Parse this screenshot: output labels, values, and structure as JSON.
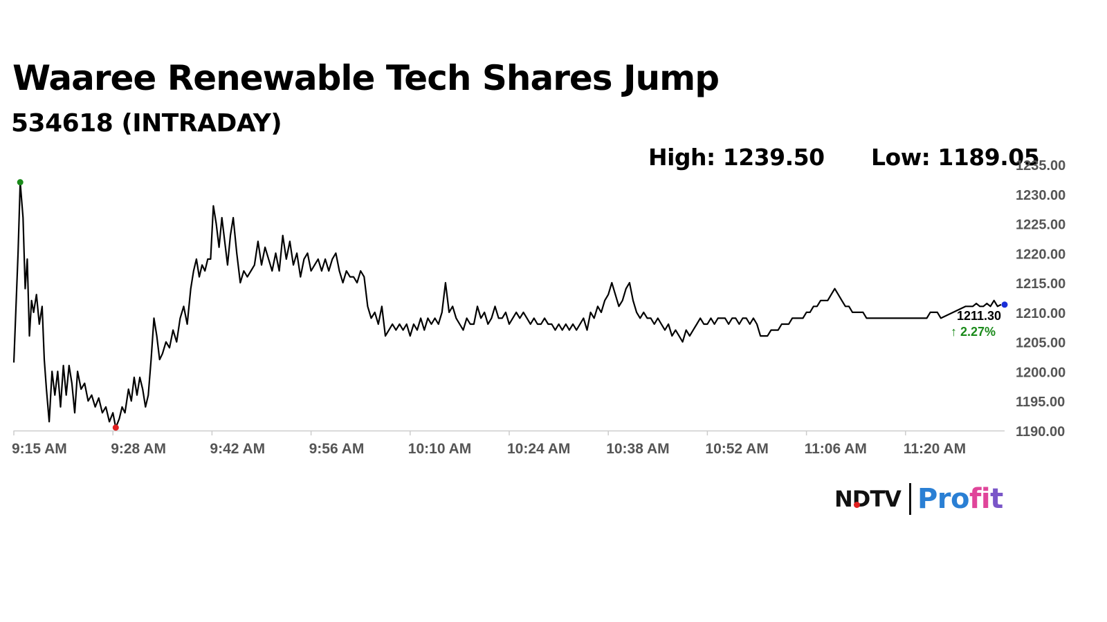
{
  "headline": "Waaree Renewable Tech Shares Jump",
  "subheadline": "534618 (INTRADAY)",
  "stats": {
    "high": "High: 1239.50",
    "low": "Low: 1189.05"
  },
  "logo": {
    "ndtv": "NDTV",
    "profit_a": "Pro",
    "profit_b": "fi",
    "profit_c": "t",
    "brand_blue": "#2a7fd4",
    "brand_pink": "#e0459a"
  },
  "chart_data": {
    "type": "line",
    "title": "Waaree Renewable Tech Shares Jump",
    "subtitle": "534618 (INTRADAY)",
    "xlabel": "",
    "ylabel": "",
    "ylim": [
      1190,
      1235
    ],
    "y_ticks": [
      "1190.00",
      "1195.00",
      "1200.00",
      "1205.00",
      "1210.00",
      "1215.00",
      "1220.00",
      "1225.00",
      "1230.00",
      "1235.00"
    ],
    "x_range_minutes": [
      0,
      140
    ],
    "x_ticks": [
      {
        "label": "9:15 AM",
        "min": 0
      },
      {
        "label": "9:28 AM",
        "min": 14
      },
      {
        "label": "9:42 AM",
        "min": 28
      },
      {
        "label": "9:56 AM",
        "min": 42
      },
      {
        "label": "10:10 AM",
        "min": 56
      },
      {
        "label": "10:24 AM",
        "min": 70
      },
      {
        "label": "10:38 AM",
        "min": 84
      },
      {
        "label": "10:52 AM",
        "min": 98
      },
      {
        "label": "11:06 AM",
        "min": 112
      },
      {
        "label": "11:20 AM",
        "min": 126
      }
    ],
    "series": [
      {
        "name": "534618",
        "color": "#000000",
        "points": [
          [
            0,
            1201.5
          ],
          [
            0.6,
            1220
          ],
          [
            0.9,
            1232
          ],
          [
            1.3,
            1226
          ],
          [
            1.6,
            1214
          ],
          [
            1.9,
            1219
          ],
          [
            2.2,
            1206
          ],
          [
            2.5,
            1212
          ],
          [
            2.8,
            1210
          ],
          [
            3.2,
            1213
          ],
          [
            3.6,
            1208
          ],
          [
            4.0,
            1211
          ],
          [
            4.3,
            1202
          ],
          [
            4.6,
            1197
          ],
          [
            5.0,
            1191.5
          ],
          [
            5.4,
            1200
          ],
          [
            5.8,
            1196
          ],
          [
            6.2,
            1200
          ],
          [
            6.6,
            1194
          ],
          [
            7.0,
            1201
          ],
          [
            7.4,
            1196
          ],
          [
            7.8,
            1201
          ],
          [
            8.2,
            1198
          ],
          [
            8.6,
            1193
          ],
          [
            9.0,
            1200
          ],
          [
            9.5,
            1197
          ],
          [
            10.0,
            1198
          ],
          [
            10.5,
            1195
          ],
          [
            11.0,
            1196
          ],
          [
            11.5,
            1194
          ],
          [
            12.0,
            1195.5
          ],
          [
            12.5,
            1193
          ],
          [
            13.0,
            1194
          ],
          [
            13.5,
            1191.5
          ],
          [
            14.0,
            1193
          ],
          [
            14.4,
            1190.5
          ],
          [
            14.9,
            1192
          ],
          [
            15.3,
            1194
          ],
          [
            15.7,
            1193
          ],
          [
            16.2,
            1197
          ],
          [
            16.6,
            1195
          ],
          [
            17.0,
            1199
          ],
          [
            17.4,
            1196
          ],
          [
            17.8,
            1199
          ],
          [
            18.2,
            1197
          ],
          [
            18.6,
            1194
          ],
          [
            19.0,
            1196
          ],
          [
            19.4,
            1202
          ],
          [
            19.8,
            1209
          ],
          [
            20.2,
            1206
          ],
          [
            20.6,
            1202
          ],
          [
            21.0,
            1203
          ],
          [
            21.5,
            1205
          ],
          [
            22.0,
            1204
          ],
          [
            22.5,
            1207
          ],
          [
            23.0,
            1205
          ],
          [
            23.5,
            1209
          ],
          [
            24.0,
            1211
          ],
          [
            24.5,
            1208
          ],
          [
            25.0,
            1214
          ],
          [
            25.4,
            1217
          ],
          [
            25.8,
            1219
          ],
          [
            26.2,
            1216
          ],
          [
            26.6,
            1218
          ],
          [
            27.0,
            1217
          ],
          [
            27.4,
            1219
          ],
          [
            27.8,
            1219
          ],
          [
            28.2,
            1228
          ],
          [
            28.6,
            1225
          ],
          [
            29.0,
            1221
          ],
          [
            29.4,
            1226
          ],
          [
            29.8,
            1222
          ],
          [
            30.2,
            1218
          ],
          [
            30.6,
            1223
          ],
          [
            31.0,
            1226
          ],
          [
            31.5,
            1220
          ],
          [
            32.0,
            1215
          ],
          [
            32.5,
            1217
          ],
          [
            33.0,
            1216
          ],
          [
            33.5,
            1217
          ],
          [
            34.0,
            1218
          ],
          [
            34.5,
            1222
          ],
          [
            35.0,
            1218
          ],
          [
            35.5,
            1221
          ],
          [
            36.0,
            1219
          ],
          [
            36.5,
            1217
          ],
          [
            37.0,
            1220
          ],
          [
            37.5,
            1217
          ],
          [
            38.0,
            1223
          ],
          [
            38.5,
            1219
          ],
          [
            39.0,
            1222
          ],
          [
            39.5,
            1218
          ],
          [
            40.0,
            1220
          ],
          [
            40.5,
            1216
          ],
          [
            41.0,
            1219
          ],
          [
            41.5,
            1220
          ],
          [
            42.0,
            1217
          ],
          [
            42.5,
            1218
          ],
          [
            43.0,
            1219
          ],
          [
            43.5,
            1217
          ],
          [
            44.0,
            1219
          ],
          [
            44.5,
            1217
          ],
          [
            45.0,
            1219
          ],
          [
            45.5,
            1220
          ],
          [
            46.0,
            1217
          ],
          [
            46.5,
            1215
          ],
          [
            47.0,
            1217
          ],
          [
            47.5,
            1216
          ],
          [
            48.0,
            1216
          ],
          [
            48.5,
            1215
          ],
          [
            49.0,
            1217
          ],
          [
            49.5,
            1216
          ],
          [
            50.0,
            1211
          ],
          [
            50.5,
            1209
          ],
          [
            51.0,
            1210
          ],
          [
            51.5,
            1208
          ],
          [
            52.0,
            1211
          ],
          [
            52.5,
            1206
          ],
          [
            53.0,
            1207
          ],
          [
            53.5,
            1208
          ],
          [
            54.0,
            1207
          ],
          [
            54.5,
            1208
          ],
          [
            55.0,
            1207
          ],
          [
            55.5,
            1208
          ],
          [
            56.0,
            1206
          ],
          [
            56.5,
            1208
          ],
          [
            57.0,
            1207
          ],
          [
            57.5,
            1209
          ],
          [
            58.0,
            1207
          ],
          [
            58.5,
            1209
          ],
          [
            59.0,
            1208
          ],
          [
            59.5,
            1209
          ],
          [
            60.0,
            1208
          ],
          [
            60.5,
            1210
          ],
          [
            61.0,
            1215
          ],
          [
            61.5,
            1210
          ],
          [
            62.0,
            1211
          ],
          [
            62.5,
            1209
          ],
          [
            63.0,
            1208
          ],
          [
            63.5,
            1207
          ],
          [
            64.0,
            1209
          ],
          [
            64.5,
            1208
          ],
          [
            65.0,
            1208
          ],
          [
            65.5,
            1211
          ],
          [
            66.0,
            1209
          ],
          [
            66.5,
            1210
          ],
          [
            67.0,
            1208
          ],
          [
            67.5,
            1209
          ],
          [
            68.0,
            1211
          ],
          [
            68.5,
            1209
          ],
          [
            69.0,
            1209
          ],
          [
            69.5,
            1210
          ],
          [
            70.0,
            1208
          ],
          [
            70.5,
            1209
          ],
          [
            71.0,
            1210
          ],
          [
            71.5,
            1209
          ],
          [
            72.0,
            1210
          ],
          [
            72.5,
            1209
          ],
          [
            73.0,
            1208
          ],
          [
            73.5,
            1209
          ],
          [
            74.0,
            1208
          ],
          [
            74.5,
            1208
          ],
          [
            75.0,
            1209
          ],
          [
            75.5,
            1208
          ],
          [
            76.0,
            1208
          ],
          [
            76.5,
            1207
          ],
          [
            77.0,
            1208
          ],
          [
            77.5,
            1207
          ],
          [
            78.0,
            1208
          ],
          [
            78.5,
            1207
          ],
          [
            79.0,
            1208
          ],
          [
            79.5,
            1207
          ],
          [
            80.0,
            1208
          ],
          [
            80.5,
            1209
          ],
          [
            81.0,
            1207
          ],
          [
            81.5,
            1210
          ],
          [
            82.0,
            1209
          ],
          [
            82.5,
            1211
          ],
          [
            83.0,
            1210
          ],
          [
            83.5,
            1212
          ],
          [
            84.0,
            1213
          ],
          [
            84.5,
            1215
          ],
          [
            85.0,
            1213
          ],
          [
            85.5,
            1211
          ],
          [
            86.0,
            1212
          ],
          [
            86.5,
            1214
          ],
          [
            87.0,
            1215
          ],
          [
            87.5,
            1212
          ],
          [
            88.0,
            1210
          ],
          [
            88.5,
            1209
          ],
          [
            89.0,
            1210
          ],
          [
            89.5,
            1209
          ],
          [
            90.0,
            1209
          ],
          [
            90.5,
            1208
          ],
          [
            91.0,
            1209
          ],
          [
            91.5,
            1208
          ],
          [
            92.0,
            1207
          ],
          [
            92.5,
            1208
          ],
          [
            93.0,
            1206
          ],
          [
            93.5,
            1207
          ],
          [
            94.0,
            1206
          ],
          [
            94.5,
            1205
          ],
          [
            95.0,
            1207
          ],
          [
            95.5,
            1206
          ],
          [
            96.0,
            1207
          ],
          [
            96.5,
            1208
          ],
          [
            97.0,
            1209
          ],
          [
            97.5,
            1208
          ],
          [
            98.0,
            1208
          ],
          [
            98.5,
            1209
          ],
          [
            99.0,
            1208
          ],
          [
            99.5,
            1209
          ],
          [
            100.0,
            1209
          ],
          [
            100.5,
            1209
          ],
          [
            101.0,
            1208
          ],
          [
            101.5,
            1209
          ],
          [
            102.0,
            1209
          ],
          [
            102.5,
            1208
          ],
          [
            103.0,
            1209
          ],
          [
            103.5,
            1209
          ],
          [
            104.0,
            1208
          ],
          [
            104.5,
            1209
          ],
          [
            105.0,
            1208
          ],
          [
            105.5,
            1206
          ],
          [
            106.0,
            1206
          ],
          [
            106.5,
            1206
          ],
          [
            107.0,
            1207
          ],
          [
            107.5,
            1207
          ],
          [
            108.0,
            1207
          ],
          [
            108.5,
            1208
          ],
          [
            109.0,
            1208
          ],
          [
            109.5,
            1208
          ],
          [
            110.0,
            1209
          ],
          [
            110.5,
            1209
          ],
          [
            111.0,
            1209
          ],
          [
            111.5,
            1209
          ],
          [
            112.0,
            1210
          ],
          [
            112.5,
            1210
          ],
          [
            113.0,
            1211
          ],
          [
            113.5,
            1211
          ],
          [
            114.0,
            1212
          ],
          [
            114.5,
            1212
          ],
          [
            115.0,
            1212
          ],
          [
            115.5,
            1213
          ],
          [
            116.0,
            1214
          ],
          [
            116.5,
            1213
          ],
          [
            117.0,
            1212
          ],
          [
            117.5,
            1211
          ],
          [
            118.0,
            1211
          ],
          [
            118.5,
            1210
          ],
          [
            119.0,
            1210
          ],
          [
            119.5,
            1210
          ],
          [
            120.0,
            1210
          ],
          [
            120.5,
            1209
          ],
          [
            121.0,
            1209
          ],
          [
            121.5,
            1209
          ],
          [
            122.0,
            1209
          ],
          [
            122.5,
            1209
          ],
          [
            123.0,
            1209
          ],
          [
            123.5,
            1209
          ],
          [
            124.0,
            1209
          ],
          [
            124.5,
            1209
          ],
          [
            125.0,
            1209
          ],
          [
            125.5,
            1209
          ],
          [
            126.0,
            1209
          ],
          [
            126.5,
            1209
          ],
          [
            127.0,
            1209
          ],
          [
            127.5,
            1209
          ],
          [
            128.0,
            1209
          ],
          [
            128.5,
            1209
          ],
          [
            129.0,
            1209
          ],
          [
            129.5,
            1210
          ],
          [
            130.0,
            1210
          ],
          [
            130.5,
            1210
          ],
          [
            131.0,
            1209
          ],
          [
            134.5,
            1211
          ],
          [
            135.0,
            1211
          ],
          [
            135.5,
            1211
          ],
          [
            136.0,
            1211.5
          ],
          [
            136.5,
            1211
          ],
          [
            137.0,
            1211
          ],
          [
            137.5,
            1211.5
          ],
          [
            138.0,
            1211
          ],
          [
            138.5,
            1212
          ],
          [
            139.0,
            1211
          ],
          [
            139.5,
            1211.3
          ]
        ]
      }
    ],
    "high_marker": {
      "min": 0.9,
      "value": 1232,
      "color": "#1a8a1a"
    },
    "low_marker": {
      "min": 14.4,
      "value": 1190.5,
      "color": "#e02020"
    },
    "last_marker": {
      "min": 140,
      "value": 1211.3,
      "color": "#1a2fd8"
    },
    "last_price": "1211.30",
    "change": "↑ 2.27%"
  }
}
